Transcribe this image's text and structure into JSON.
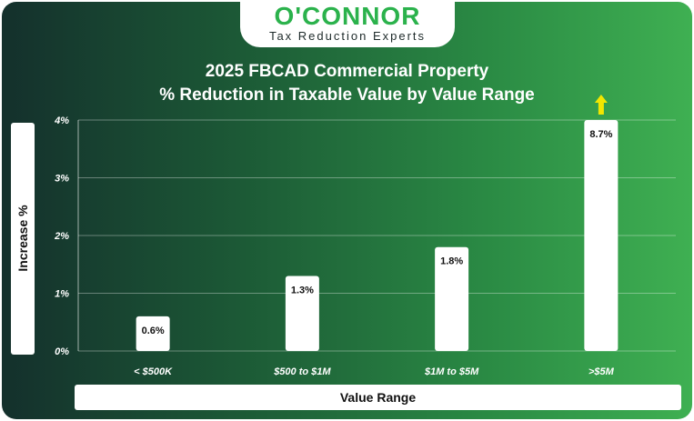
{
  "brand": {
    "name": "O'CONNOR",
    "tagline": "Tax Reduction Experts"
  },
  "colors": {
    "brand_green": "#2bb24c",
    "bar_fill": "#ffffff",
    "arrow": "#f2e600"
  },
  "chart_data": {
    "type": "bar",
    "title_lines": [
      "2025 FBCAD Commercial Property",
      "% Reduction in Taxable Value by Value Range"
    ],
    "xlabel": "Value Range",
    "ylabel": "Increase %",
    "categories": [
      "< $500K",
      "$500 to $1M",
      "$1M to $5M",
      ">$5M"
    ],
    "values": [
      0.6,
      1.3,
      1.8,
      8.7
    ],
    "data_labels": [
      "0.6%",
      "1.3%",
      "1.8%",
      "8.7%"
    ],
    "ylim": [
      0,
      4
    ],
    "y_ticks": [
      0,
      1,
      2,
      3,
      4
    ],
    "y_tick_labels": [
      "0%",
      "1%",
      "2%",
      "3%",
      "4%"
    ],
    "grid": true,
    "overflow_indicator": {
      "category": ">$5M",
      "icon": "up-arrow-icon"
    }
  }
}
